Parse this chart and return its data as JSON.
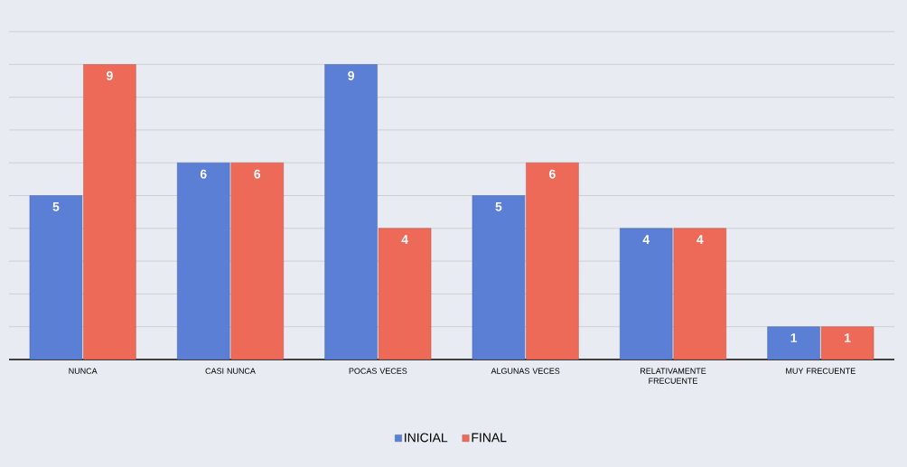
{
  "chart_data": {
    "type": "bar",
    "categories": [
      "NUNCA",
      "CASI NUNCA",
      "POCAS VECES",
      "ALGUNAS VECES",
      "RELATIVAMENTE FRECUENTE",
      "MUY FRECUENTE"
    ],
    "series": [
      {
        "name": "INICIAL",
        "color": "#5a7fd4",
        "values": [
          5,
          6,
          9,
          5,
          4,
          1
        ]
      },
      {
        "name": "FINAL",
        "color": "#ee6a58",
        "values": [
          9,
          6,
          4,
          6,
          4,
          1
        ]
      }
    ],
    "ylim": [
      0,
      10
    ],
    "yticks": [
      {
        "value": 1,
        "label": null
      },
      {
        "value": 2,
        "label": null
      },
      {
        "value": 3,
        "label": null
      },
      {
        "value": 4,
        "label": null
      },
      {
        "value": 5,
        "label": null
      },
      {
        "value": 6,
        "label": null
      },
      {
        "value": 7,
        "label": null
      },
      {
        "value": 8,
        "label": null
      },
      {
        "value": 9,
        "label": null
      },
      {
        "value": 10,
        "label": null
      }
    ],
    "grid": "y",
    "legend": "bottom",
    "tick_labels": "x",
    "data_labels": true
  }
}
